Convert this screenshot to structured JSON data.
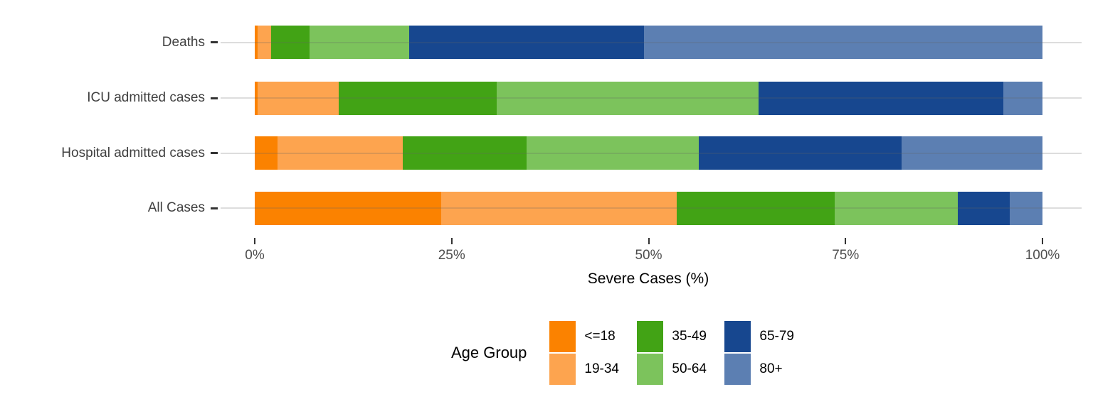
{
  "chart_data": {
    "type": "bar",
    "variant": "horizontal-stacked-100pct",
    "title": "",
    "xlabel": "Severe Cases (%)",
    "ylabel": "",
    "legend_title": "Age Group",
    "legend_position": "bottom",
    "grid": "horizontal-major-only",
    "background": "#FFFFFF",
    "xlim": [
      0,
      100
    ],
    "x_ticks": [
      {
        "value": 0,
        "label": "0%"
      },
      {
        "value": 25,
        "label": "25%"
      },
      {
        "value": 50,
        "label": "50%"
      },
      {
        "value": 75,
        "label": "75%"
      },
      {
        "value": 100,
        "label": "100%"
      }
    ],
    "categories": [
      "Deaths",
      "ICU admitted cases",
      "Hospital admitted cases",
      "All Cases"
    ],
    "series": [
      {
        "name": "<=18",
        "color": "#FB8200",
        "values": [
          0.4,
          0.4,
          2.9,
          23.7
        ]
      },
      {
        "name": "19-34",
        "color": "#FDA44F",
        "values": [
          1.7,
          10.3,
          15.9,
          29.9
        ]
      },
      {
        "name": "35-49",
        "color": "#42A315",
        "values": [
          4.9,
          20.0,
          15.7,
          20.1
        ]
      },
      {
        "name": "50-64",
        "color": "#7CC35C",
        "values": [
          12.6,
          33.3,
          21.9,
          15.6
        ]
      },
      {
        "name": "65-79",
        "color": "#17478F",
        "values": [
          29.8,
          31.0,
          25.7,
          6.6
        ]
      },
      {
        "name": "80+",
        "color": "#5C7FB2",
        "values": [
          50.6,
          5.0,
          17.9,
          4.2
        ]
      }
    ]
  }
}
